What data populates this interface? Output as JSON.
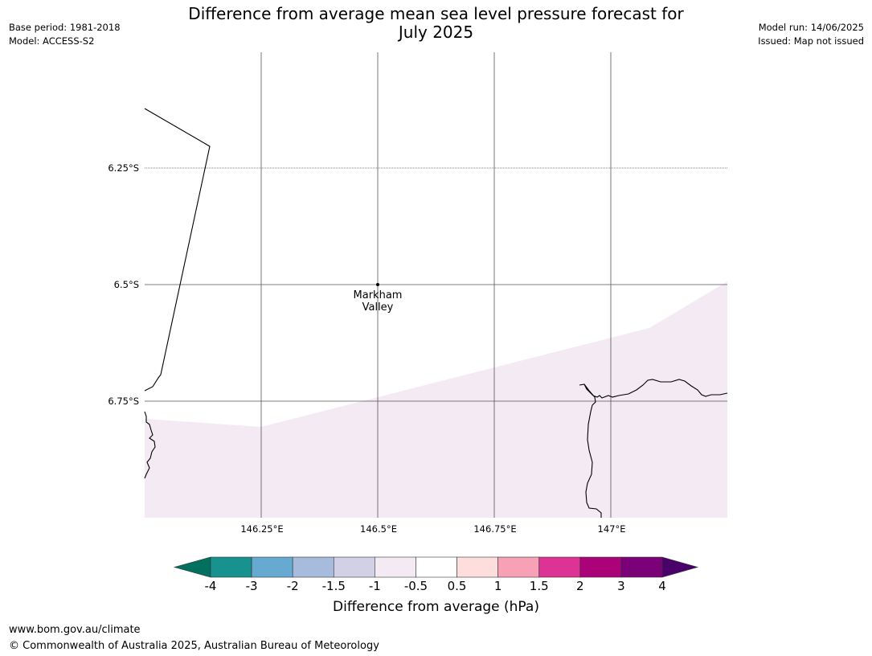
{
  "header": {
    "title_line1": "Difference from average mean sea level pressure forecast for",
    "title_line2": "July 2025",
    "base_period": "Base period: 1981-2018",
    "model": "Model: ACCESS-S2",
    "model_run": "Model run: 14/06/2025",
    "issued": "Issued: Map not issued"
  },
  "map": {
    "lat_labels": [
      "6.25°S",
      "6.5°S",
      "6.75°S"
    ],
    "lon_labels": [
      "146.25°E",
      "146.5°E",
      "146.75°E",
      "147°E"
    ],
    "place": {
      "name_line1": "Markham",
      "name_line2": "Valley"
    },
    "field_color": "#f3eaf4",
    "field_category": "-0.5 to -1 hPa"
  },
  "colorbar": {
    "title": "Difference from average (hPa)",
    "ticks": [
      "-4",
      "-3",
      "-2",
      "-1.5",
      "-1",
      "-0.5",
      "0.5",
      "1",
      "1.5",
      "2",
      "3",
      "4"
    ],
    "colors": [
      "#17928f",
      "#66a9d1",
      "#a7bbdc",
      "#d1d0e5",
      "#f3eaf4",
      "#ffffff",
      "#fddedc",
      "#f8a0b6",
      "#dc3394",
      "#ab0179",
      "#7b0178"
    ],
    "under_color": "#01705f",
    "over_color": "#4b016a"
  },
  "footer": {
    "url": "www.bom.gov.au/climate",
    "copyright": "© Commonwealth of Australia 2025, Australian Bureau of Meteorology"
  }
}
